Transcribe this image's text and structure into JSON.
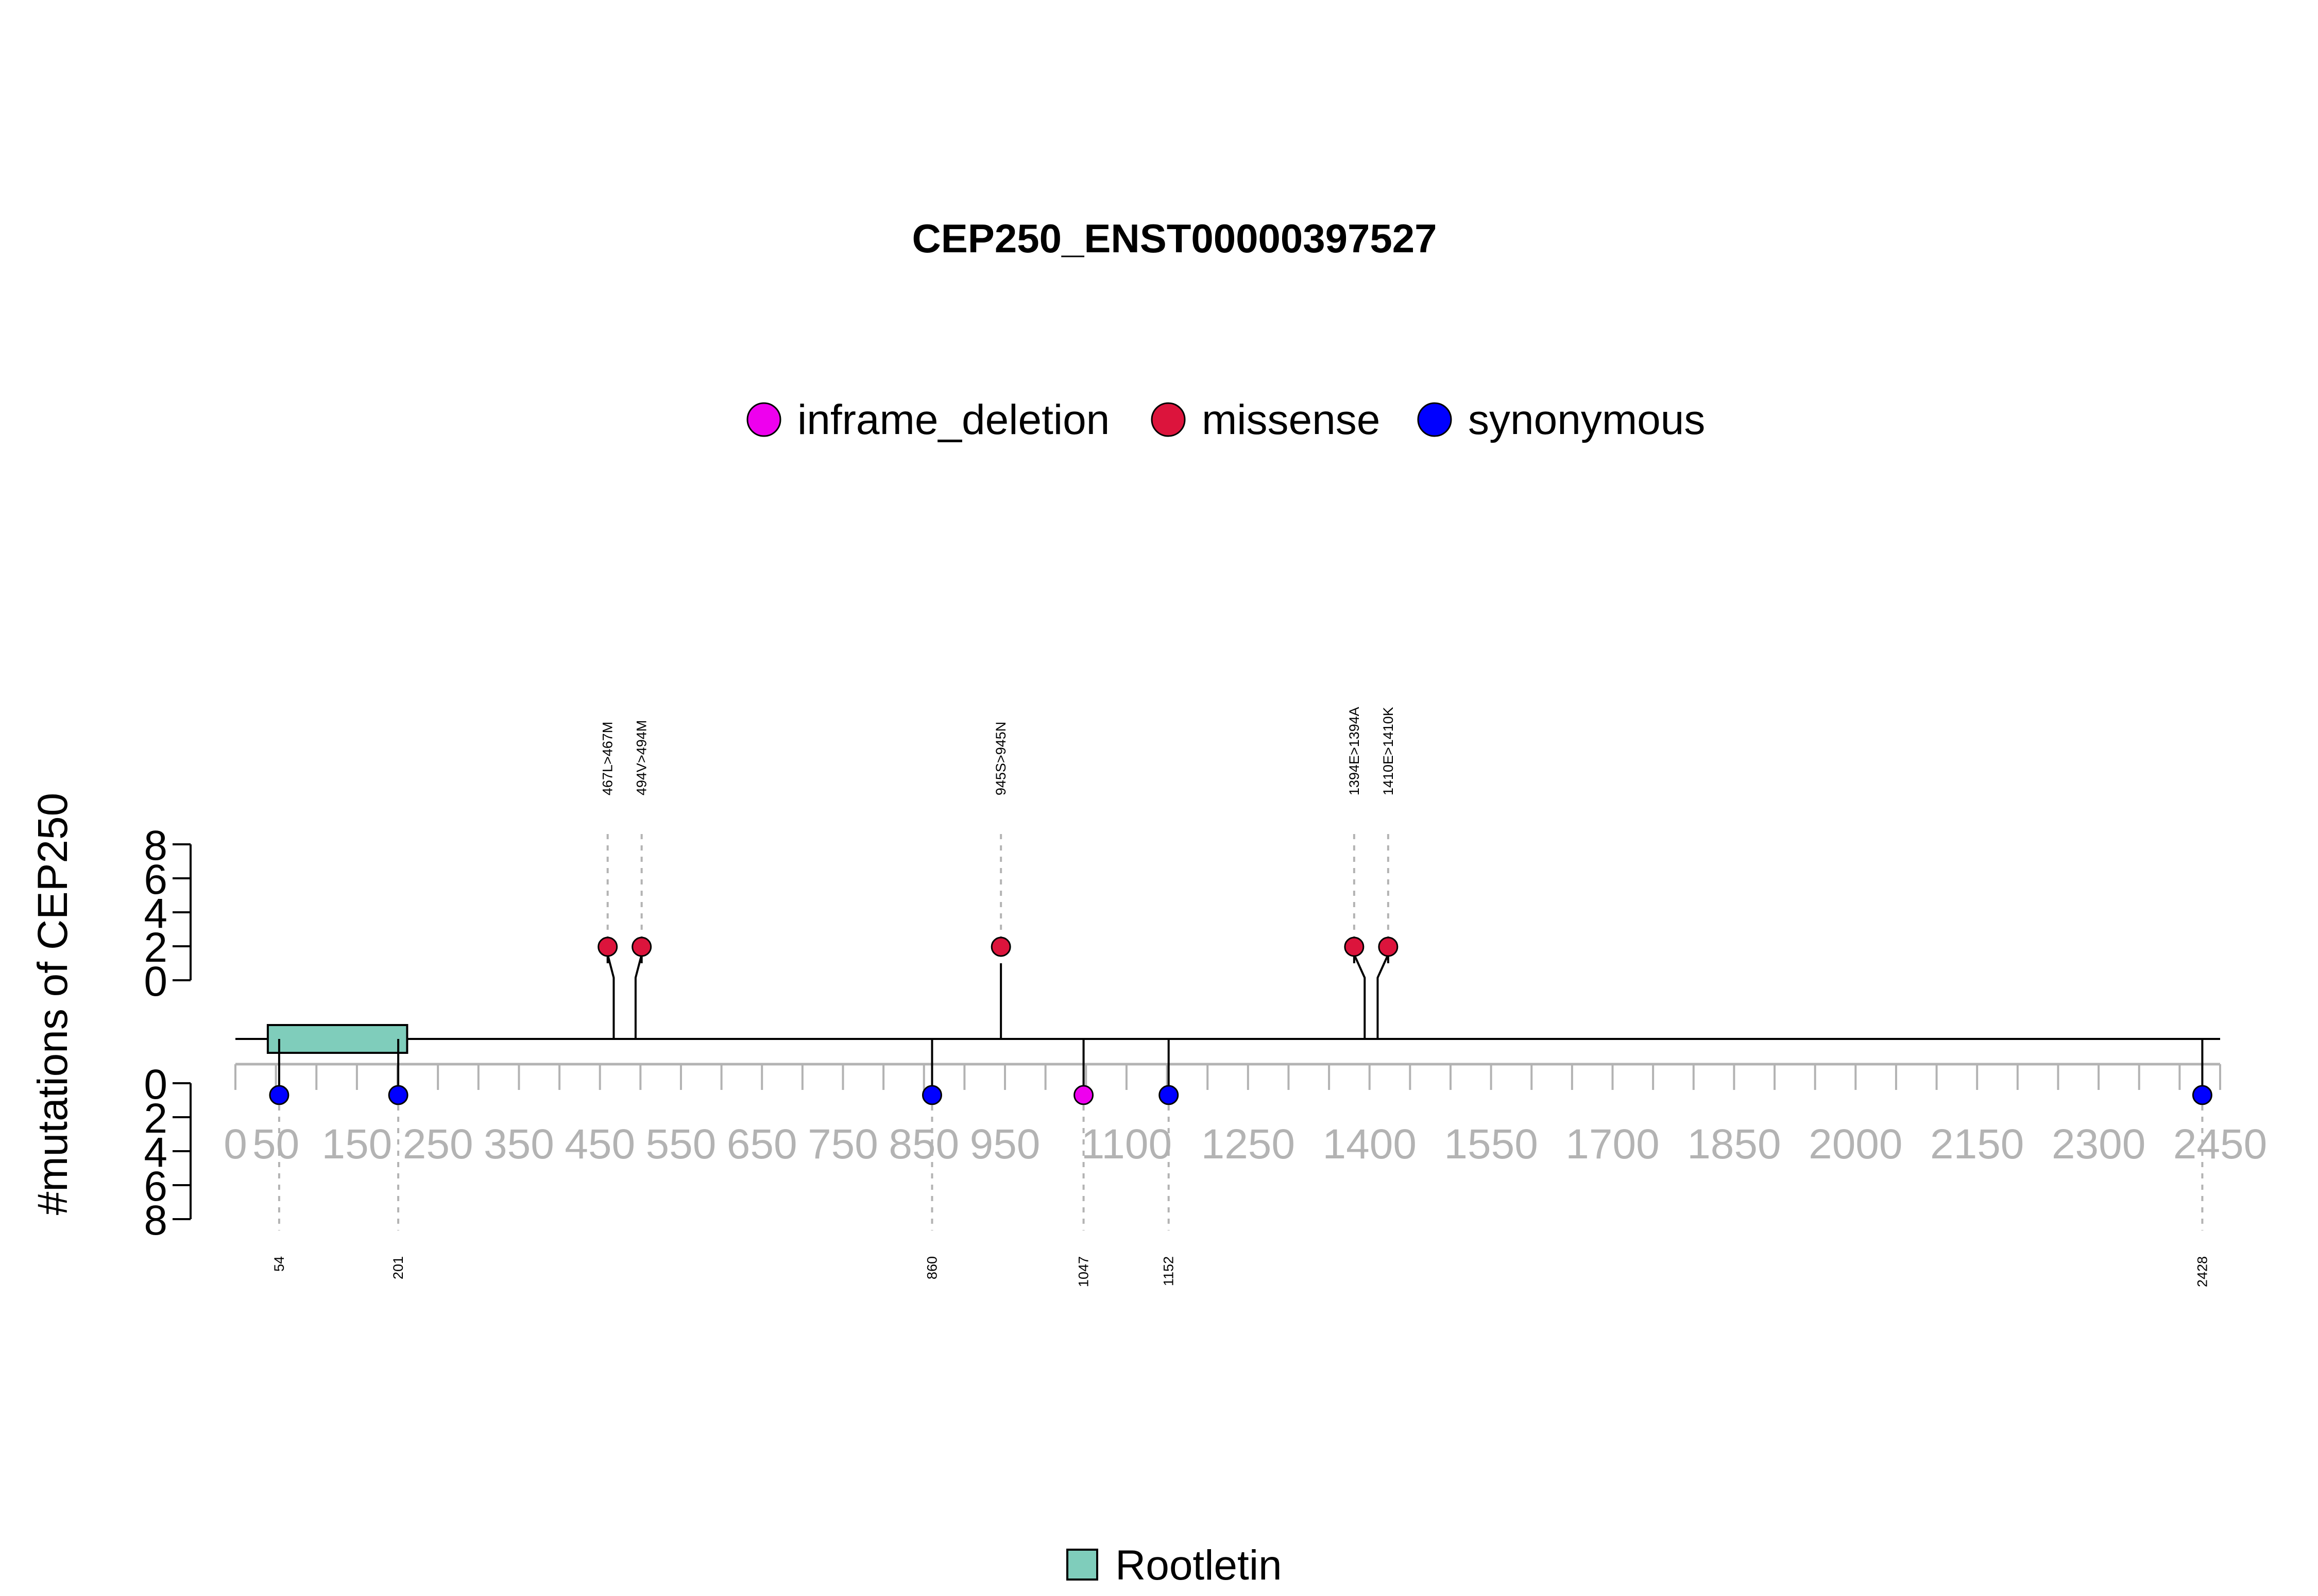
{
  "chart_data": {
    "type": "lollipop",
    "title": "CEP250_ENST00000397527",
    "ylabel": "#mutations of CEP250",
    "x_range": [
      0,
      2450
    ],
    "x_ticks": [
      0,
      50,
      150,
      250,
      350,
      450,
      550,
      650,
      750,
      850,
      950,
      1100,
      1250,
      1400,
      1550,
      1700,
      1850,
      2000,
      2150,
      2300,
      2450
    ],
    "y_ticks": [
      0,
      2,
      4,
      6,
      8
    ],
    "legend": [
      {
        "name": "inframe_deletion",
        "color": "#ee00ee"
      },
      {
        "name": "missense",
        "color": "#dc143c"
      },
      {
        "name": "synonymous",
        "color": "#0000ff"
      }
    ],
    "domain_legend": [
      {
        "name": "Rootletin",
        "color": "#7fcdbb"
      }
    ],
    "domains": [
      {
        "name": "Rootletin",
        "start": 40,
        "end": 212
      }
    ],
    "mutations_top": [
      {
        "label": "467L>467M",
        "position": 467,
        "count": 1,
        "type": "missense"
      },
      {
        "label": "494V>494M",
        "position": 494,
        "count": 1,
        "type": "missense"
      },
      {
        "label": "945S>945N",
        "position": 945,
        "count": 1,
        "type": "missense"
      },
      {
        "label": "1394E>1394A",
        "position": 1394,
        "count": 1,
        "type": "missense"
      },
      {
        "label": "1410E>1410K",
        "position": 1410,
        "count": 1,
        "type": "missense"
      }
    ],
    "mutations_bottom": [
      {
        "label": "54",
        "position": 54,
        "count": 1,
        "type": "synonymous"
      },
      {
        "label": "201",
        "position": 201,
        "count": 1,
        "type": "synonymous"
      },
      {
        "label": "860",
        "position": 860,
        "count": 1,
        "type": "synonymous"
      },
      {
        "label": "1047",
        "position": 1047,
        "count": 1,
        "type": "inframe_deletion"
      },
      {
        "label": "1152",
        "position": 1152,
        "count": 1,
        "type": "synonymous"
      },
      {
        "label": "2428",
        "position": 2428,
        "count": 1,
        "type": "synonymous"
      }
    ]
  }
}
